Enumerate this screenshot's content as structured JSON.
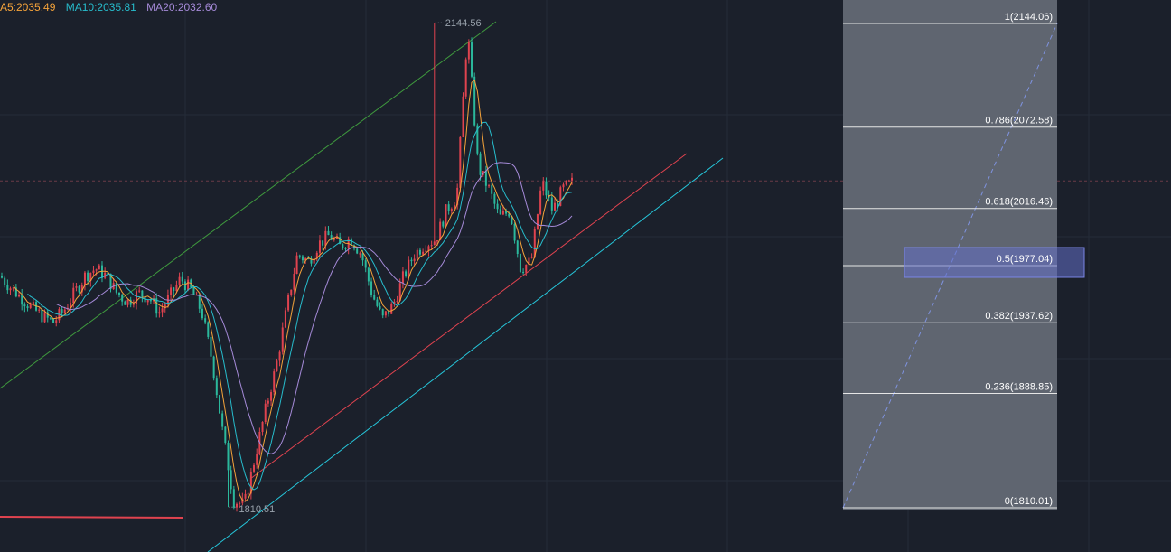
{
  "legend": {
    "ma5": "A5:2035.49",
    "ma10": "MA10:2035.81",
    "ma20": "MA20:2032.60"
  },
  "colors": {
    "background": "#1b202b",
    "grid": "#252c38",
    "up": "#e0434f",
    "down": "#2bb89c",
    "ma5": "#f5a33a",
    "ma10": "#27bccc",
    "ma20": "#a58ad8",
    "channel_upper": "#3f9a3e",
    "channel_lower": "#e0434f",
    "channel_base": "#26c6da",
    "fib_zone": "#5f6570",
    "fib_highlight": "#6270c8"
  },
  "chart_data": {
    "type": "candlestick",
    "instrument_prices": {
      "high": 2144.56,
      "low": 1810.51,
      "current": 2035.49
    },
    "annotations": {
      "high_label": "2144.56",
      "low_label": "1810.51"
    },
    "fibonacci": {
      "high": 2144.06,
      "low": 1810.01,
      "levels": [
        {
          "ratio": 1,
          "price": 2144.06,
          "label": "1(2144.06)"
        },
        {
          "ratio": 0.786,
          "price": 2072.58,
          "label": "0.786(2072.58)"
        },
        {
          "ratio": 0.618,
          "price": 2016.46,
          "label": "0.618(2016.46)"
        },
        {
          "ratio": 0.5,
          "price": 1977.04,
          "label": "0.5(1977.04)",
          "highlight": true
        },
        {
          "ratio": 0.382,
          "price": 1937.62,
          "label": "0.382(1937.62)"
        },
        {
          "ratio": 0.236,
          "price": 1888.85,
          "label": "0.236(1888.85)"
        },
        {
          "ratio": 0,
          "price": 1810.01,
          "label": "0(1810.01)"
        }
      ]
    },
    "price_path": [
      1970,
      1962,
      1955,
      1948,
      1942,
      1938,
      1946,
      1958,
      1970,
      1975,
      1970,
      1958,
      1952,
      1958,
      1955,
      1945,
      1956,
      1968,
      1960,
      1945,
      1910,
      1860,
      1815,
      1812,
      1845,
      1878,
      1908,
      1948,
      1985,
      1980,
      1992,
      1998,
      1990,
      1996,
      1985,
      1958,
      1940,
      1950,
      1970,
      1985,
      1992,
      1995,
      2015,
      2025,
      2140,
      2045,
      2030,
      2010,
      2015,
      1975,
      1980,
      2035,
      2015,
      2030,
      2035
    ]
  }
}
